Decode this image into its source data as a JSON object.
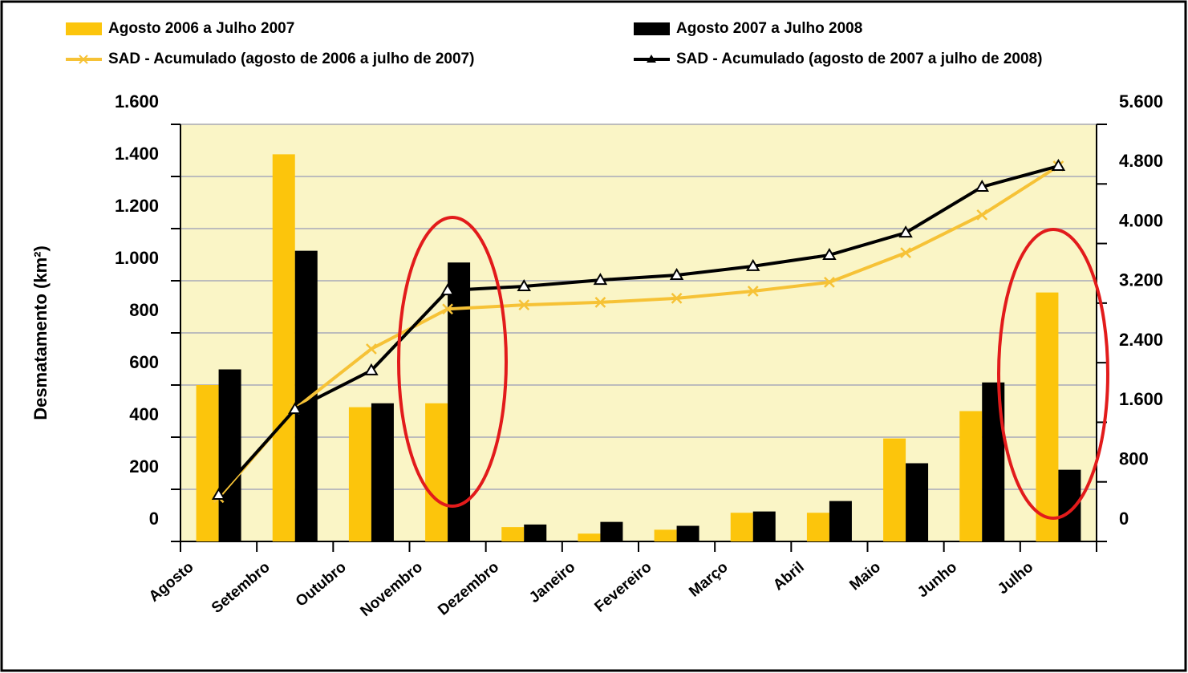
{
  "chart_data": {
    "type": "bar",
    "y_label": "Desmatamento (km²)",
    "categories": [
      "Agosto",
      "Setembro",
      "Outubro",
      "Novembro",
      "Dezembro",
      "Janeiro",
      "Fevereiro",
      "Março",
      "Abril",
      "Maio",
      "Junho",
      "Julho"
    ],
    "series": [
      {
        "name": "Agosto 2006 a Julho 2007",
        "type": "bar",
        "color": "#fcc50c",
        "values": [
          600,
          1485,
          515,
          530,
          55,
          30,
          45,
          110,
          110,
          395,
          500,
          955
        ]
      },
      {
        "name": "Agosto 2007 a Julho 2008",
        "type": "bar",
        "color": "#000000",
        "values": [
          660,
          1115,
          530,
          1070,
          65,
          75,
          60,
          115,
          155,
          300,
          610,
          275
        ]
      },
      {
        "name": "SAD - Acumulado (agosto de 2006 a julho de 2007)",
        "type": "line",
        "marker": "x",
        "axis": "y2",
        "color": "#f6c236",
        "values": [
          590,
          1780,
          2585,
          3120,
          3175,
          3210,
          3265,
          3360,
          3480,
          3875,
          4385,
          5040
        ]
      },
      {
        "name": "SAD - Acumulado (agosto de 2007 a julho de 2008)",
        "type": "line",
        "marker": "triangle",
        "axis": "y2",
        "color": "#000000",
        "values": [
          625,
          1775,
          2295,
          3370,
          3425,
          3510,
          3575,
          3695,
          3845,
          4145,
          4760,
          5040
        ]
      }
    ],
    "ylim": [
      0,
      1600
    ],
    "yticks": [
      0,
      200,
      400,
      600,
      800,
      {
        "value": 1000,
        "label": "1.000"
      },
      {
        "value": 1200,
        "label": "1.200"
      },
      {
        "value": 1400,
        "label": "1.400"
      },
      {
        "value": 1600,
        "label": "1.600"
      }
    ],
    "y2lim": [
      0,
      5600
    ],
    "y2ticks": [
      0,
      800,
      {
        "value": 1600,
        "label": "1.600"
      },
      {
        "value": 2400,
        "label": "2.400"
      },
      {
        "value": 3200,
        "label": "3.200"
      },
      {
        "value": 4000,
        "label": "4.000"
      },
      {
        "value": 4800,
        "label": "4.800"
      },
      {
        "value": 5600,
        "label": "5.600"
      }
    ],
    "grid": true,
    "plot_background": "#faf5c6"
  }
}
